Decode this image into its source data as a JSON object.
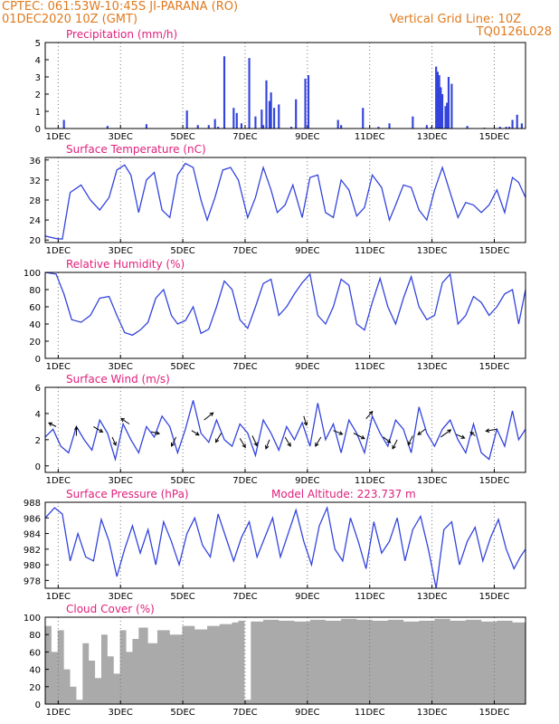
{
  "header": {
    "line1": "CPTEC:   061:53W-10:45S   JI-PARANA (RO)",
    "line2": "01DEC2020 10Z (GMT)",
    "right1": "Vertical Grid Line: 10Z",
    "right2": "TQ0126L028"
  },
  "colors": {
    "header": "#e07a1f",
    "title": "#e0207c",
    "line": "#3344dd",
    "cloud": "#aaaaaa"
  },
  "x_ticks": [
    "1DEC",
    "3DEC",
    "5DEC",
    "7DEC",
    "9DEC",
    "11DEC",
    "13DEC",
    "15DEC"
  ],
  "chart_data": [
    {
      "type": "bar",
      "title": "Precipitation (mm/h)",
      "xlabel": "",
      "ylabel": "",
      "ylim": [
        0,
        5
      ],
      "yticks": [
        0,
        1,
        2,
        3,
        4,
        5
      ],
      "xlim": [
        0,
        15.42
      ],
      "x": [
        0.6,
        2.0,
        3.25,
        4.55,
        4.9,
        5.25,
        5.45,
        5.55,
        5.75,
        6.05,
        6.15,
        6.3,
        6.55,
        6.75,
        6.95,
        7.0,
        7.1,
        7.2,
        7.25,
        7.35,
        7.5,
        7.9,
        8.05,
        8.35,
        8.45,
        9.4,
        9.5,
        10.2,
        10.7,
        11.05,
        11.8,
        12.25,
        12.4,
        12.55,
        12.6,
        12.65,
        12.7,
        12.75,
        12.85,
        12.9,
        12.95,
        13.05,
        13.55,
        14.1,
        14.6,
        14.8,
        14.9,
        15.0,
        15.15,
        15.3
      ],
      "values": [
        0.5,
        0.15,
        0.25,
        1.05,
        0.2,
        0.2,
        0.55,
        0.1,
        4.2,
        1.2,
        0.9,
        0.3,
        4.1,
        0.7,
        1.1,
        0.2,
        2.8,
        1.6,
        2.1,
        1.2,
        1.4,
        0.1,
        1.7,
        2.9,
        3.1,
        0.5,
        0.2,
        1.2,
        0.1,
        0.3,
        0.7,
        0.2,
        0.1,
        3.6,
        3.3,
        3.1,
        2.4,
        2.0,
        1.3,
        1.5,
        3.0,
        2.6,
        0.15,
        0.05,
        0.1,
        0.1,
        0.1,
        0.5,
        0.8,
        0.3
      ]
    },
    {
      "type": "line",
      "title": "Surface Temperature (nC)",
      "xlabel": "",
      "ylabel": "",
      "ylim": [
        19.5,
        36.5
      ],
      "yticks": [
        20,
        24,
        28,
        32,
        36
      ],
      "xlim": [
        0,
        15.42
      ],
      "x": [
        0,
        0.35,
        0.55,
        0.8,
        1.15,
        1.45,
        1.75,
        2.05,
        2.3,
        2.55,
        2.75,
        3.0,
        3.25,
        3.5,
        3.75,
        4.0,
        4.25,
        4.5,
        4.75,
        5.0,
        5.2,
        5.45,
        5.7,
        5.95,
        6.2,
        6.5,
        6.75,
        7.0,
        7.25,
        7.45,
        7.7,
        7.95,
        8.25,
        8.5,
        8.75,
        9.0,
        9.25,
        9.5,
        9.75,
        10.0,
        10.25,
        10.5,
        10.8,
        11.05,
        11.25,
        11.5,
        11.75,
        12.0,
        12.25,
        12.5,
        12.75,
        13.0,
        13.25,
        13.5,
        13.75,
        14.0,
        14.25,
        14.5,
        14.75,
        15.0,
        15.2,
        15.42
      ],
      "values": [
        20.8,
        20.3,
        20.2,
        29.5,
        31.0,
        28.0,
        26.0,
        28.5,
        34.0,
        35.0,
        33.0,
        25.5,
        32.0,
        33.5,
        26.0,
        24.5,
        33.0,
        35.3,
        34.5,
        28.0,
        24.0,
        28.5,
        34.0,
        34.5,
        32.0,
        24.5,
        28.5,
        34.5,
        30.0,
        25.5,
        27.0,
        31.0,
        24.5,
        32.5,
        33.0,
        25.5,
        24.5,
        32.0,
        30.0,
        24.8,
        26.5,
        33.0,
        30.5,
        24.0,
        27.0,
        31.0,
        30.5,
        26.0,
        24.0,
        30.0,
        34.5,
        29.5,
        24.5,
        27.5,
        27.0,
        25.5,
        27.0,
        30.0,
        25.5,
        32.5,
        31.5,
        28.5
      ]
    },
    {
      "type": "line",
      "title": "Relative Humidity (%)",
      "xlabel": "",
      "ylabel": "",
      "ylim": [
        0,
        100
      ],
      "yticks": [
        0,
        20,
        40,
        60,
        80,
        100
      ],
      "xlim": [
        0,
        15.42
      ],
      "x": [
        0,
        0.35,
        0.6,
        0.85,
        1.15,
        1.45,
        1.75,
        2.05,
        2.3,
        2.55,
        2.8,
        3.05,
        3.3,
        3.55,
        3.8,
        4.05,
        4.25,
        4.5,
        4.75,
        5.0,
        5.25,
        5.5,
        5.75,
        6.0,
        6.25,
        6.5,
        6.75,
        7.0,
        7.25,
        7.5,
        7.75,
        8.0,
        8.25,
        8.5,
        8.75,
        9.0,
        9.25,
        9.5,
        9.75,
        10.0,
        10.25,
        10.5,
        10.75,
        11.0,
        11.25,
        11.5,
        11.75,
        12.0,
        12.25,
        12.5,
        12.75,
        13.0,
        13.25,
        13.5,
        13.75,
        14.0,
        14.25,
        14.5,
        14.75,
        15.0,
        15.2,
        15.42
      ],
      "values": [
        100,
        98,
        75,
        45,
        42,
        50,
        70,
        72,
        50,
        30,
        27,
        33,
        42,
        70,
        80,
        50,
        40,
        44,
        60,
        29,
        34,
        60,
        90,
        80,
        45,
        35,
        60,
        87,
        92,
        50,
        60,
        75,
        88,
        98,
        50,
        40,
        60,
        92,
        85,
        40,
        33,
        65,
        93,
        60,
        40,
        70,
        95,
        60,
        45,
        50,
        88,
        98,
        40,
        50,
        72,
        65,
        50,
        60,
        75,
        80,
        40,
        80
      ]
    },
    {
      "type": "line",
      "title": "Surface Wind (m/s)",
      "xlabel": "",
      "ylabel": "",
      "ylim": [
        -0.5,
        6
      ],
      "yticks": [
        0,
        2,
        4,
        6
      ],
      "xlim": [
        0,
        15.42
      ],
      "x": [
        0,
        0.25,
        0.5,
        0.75,
        1.0,
        1.25,
        1.5,
        1.75,
        2.0,
        2.25,
        2.5,
        2.75,
        3.0,
        3.25,
        3.5,
        3.75,
        4.0,
        4.25,
        4.5,
        4.75,
        5.0,
        5.25,
        5.5,
        5.75,
        6.0,
        6.25,
        6.5,
        6.75,
        7.0,
        7.25,
        7.5,
        7.75,
        8.0,
        8.25,
        8.5,
        8.75,
        9.0,
        9.25,
        9.5,
        9.75,
        10.0,
        10.25,
        10.5,
        10.75,
        11.0,
        11.25,
        11.5,
        11.75,
        12.0,
        12.25,
        12.5,
        12.75,
        13.0,
        13.25,
        13.5,
        13.75,
        14.0,
        14.25,
        14.5,
        14.75,
        15.0,
        15.2,
        15.42
      ],
      "values": [
        2.2,
        2.8,
        1.5,
        1.0,
        3.0,
        2.0,
        1.2,
        3.5,
        2.5,
        0.5,
        3.2,
        2.0,
        1.0,
        3.0,
        2.2,
        3.8,
        3.0,
        1.0,
        2.8,
        5.0,
        2.5,
        1.8,
        3.5,
        2.0,
        1.5,
        3.2,
        2.5,
        0.8,
        3.5,
        2.5,
        1.2,
        3.0,
        2.0,
        3.3,
        1.5,
        4.8,
        2.0,
        3.2,
        1.0,
        3.5,
        2.5,
        1.0,
        3.8,
        2.5,
        1.5,
        3.5,
        2.8,
        1.0,
        4.5,
        2.5,
        1.5,
        2.8,
        3.5,
        2.0,
        1.0,
        3.2,
        1.0,
        0.5,
        2.8,
        1.5,
        4.2,
        2.0,
        2.8
      ]
    },
    {
      "type": "line",
      "title": "Surface Pressure (hPa)",
      "annotation": "Model Altitude: 223.737 m",
      "xlabel": "",
      "ylabel": "",
      "ylim": [
        977,
        988
      ],
      "yticks": [
        978,
        980,
        982,
        984,
        986,
        988
      ],
      "xlim": [
        0,
        15.42
      ],
      "x": [
        0,
        0.3,
        0.55,
        0.8,
        1.05,
        1.3,
        1.55,
        1.8,
        2.05,
        2.3,
        2.55,
        2.8,
        3.05,
        3.3,
        3.55,
        3.8,
        4.05,
        4.3,
        4.55,
        4.8,
        5.05,
        5.3,
        5.55,
        5.8,
        6.05,
        6.3,
        6.55,
        6.8,
        7.05,
        7.3,
        7.55,
        7.8,
        8.05,
        8.3,
        8.55,
        8.8,
        9.05,
        9.3,
        9.55,
        9.8,
        10.05,
        10.3,
        10.55,
        10.8,
        11.05,
        11.3,
        11.55,
        11.8,
        12.05,
        12.3,
        12.55,
        12.8,
        13.05,
        13.3,
        13.55,
        13.8,
        14.05,
        14.3,
        14.55,
        14.8,
        15.05,
        15.25,
        15.42
      ],
      "values": [
        986,
        987.3,
        986.5,
        980.5,
        984.0,
        981.0,
        980.5,
        985.8,
        983.0,
        978.5,
        982.0,
        985.0,
        981.5,
        984.5,
        980.0,
        985.5,
        983.0,
        980.0,
        984.0,
        986.0,
        982.5,
        981.0,
        986.5,
        983.5,
        980.5,
        983.5,
        985.5,
        981.0,
        983.5,
        986.0,
        981.0,
        984.0,
        987.0,
        983.0,
        980.0,
        985.0,
        987.3,
        982.0,
        980.5,
        986.0,
        983.0,
        979.5,
        985.5,
        981.5,
        983.0,
        986.0,
        980.5,
        984.5,
        986.2,
        982.0,
        977.0,
        984.5,
        985.5,
        980.0,
        983.0,
        984.8,
        980.5,
        983.5,
        985.8,
        982.0,
        979.5,
        981.0,
        982.0
      ]
    },
    {
      "type": "area",
      "title": "Cloud Cover (%)",
      "xlabel": "",
      "ylabel": "",
      "ylim": [
        0,
        100
      ],
      "yticks": [
        0,
        20,
        40,
        60,
        80,
        100
      ],
      "xlim": [
        0,
        15.42
      ],
      "x": [
        0,
        0.2,
        0.4,
        0.6,
        0.8,
        1.0,
        1.2,
        1.4,
        1.6,
        1.8,
        2.0,
        2.2,
        2.4,
        2.6,
        2.8,
        3.0,
        3.3,
        3.6,
        4.0,
        4.4,
        4.8,
        5.2,
        5.6,
        6.0,
        6.2,
        6.4,
        6.6,
        7.0,
        7.5,
        8.0,
        8.5,
        9.0,
        9.5,
        10.0,
        10.5,
        11.0,
        11.5,
        12.0,
        12.5,
        13.0,
        13.5,
        14.0,
        14.5,
        15.0,
        15.42
      ],
      "values": [
        90,
        60,
        85,
        40,
        20,
        5,
        70,
        50,
        30,
        80,
        55,
        35,
        85,
        60,
        75,
        88,
        70,
        85,
        80,
        90,
        86,
        90,
        92,
        94,
        96,
        5,
        95,
        97,
        96,
        95,
        97,
        96,
        98,
        97,
        96,
        97,
        95,
        96,
        98,
        96,
        97,
        95,
        96,
        94,
        97
      ]
    }
  ],
  "wind_arrows": [
    {
      "x": 0.35,
      "y": 3.0,
      "dx": -8,
      "dy": -4
    },
    {
      "x": 1.0,
      "y": 2.3,
      "dx": 0,
      "dy": -10
    },
    {
      "x": 1.55,
      "y": 3.0,
      "dx": 10,
      "dy": 6
    },
    {
      "x": 2.15,
      "y": 2.2,
      "dx": 4,
      "dy": 9
    },
    {
      "x": 2.7,
      "y": 3.2,
      "dx": -9,
      "dy": -6
    },
    {
      "x": 3.4,
      "y": 2.6,
      "dx": 9,
      "dy": 2
    },
    {
      "x": 4.2,
      "y": 2.2,
      "dx": -5,
      "dy": 10
    },
    {
      "x": 4.7,
      "y": 2.7,
      "dx": 8,
      "dy": 5
    },
    {
      "x": 5.1,
      "y": 3.5,
      "dx": 10,
      "dy": -8
    },
    {
      "x": 5.65,
      "y": 2.5,
      "dx": -6,
      "dy": 10
    },
    {
      "x": 6.25,
      "y": 2.1,
      "dx": 6,
      "dy": 10
    },
    {
      "x": 6.65,
      "y": 2.3,
      "dx": 5,
      "dy": 11
    },
    {
      "x": 7.2,
      "y": 2.0,
      "dx": -4,
      "dy": 10
    },
    {
      "x": 7.7,
      "y": 2.2,
      "dx": 6,
      "dy": 10
    },
    {
      "x": 8.3,
      "y": 3.8,
      "dx": 3,
      "dy": 10
    },
    {
      "x": 8.85,
      "y": 2.2,
      "dx": -6,
      "dy": 10
    },
    {
      "x": 9.25,
      "y": 2.7,
      "dx": 10,
      "dy": 4
    },
    {
      "x": 9.9,
      "y": 2.5,
      "dx": 12,
      "dy": 6
    },
    {
      "x": 10.3,
      "y": 3.6,
      "dx": 7,
      "dy": -8
    },
    {
      "x": 10.85,
      "y": 2.2,
      "dx": 8,
      "dy": 6
    },
    {
      "x": 11.3,
      "y": 2.0,
      "dx": -5,
      "dy": 10
    },
    {
      "x": 11.8,
      "y": 2.3,
      "dx": -5,
      "dy": 10
    },
    {
      "x": 12.2,
      "y": 2.8,
      "dx": -8,
      "dy": 6
    },
    {
      "x": 12.7,
      "y": 2.2,
      "dx": 11,
      "dy": -8
    },
    {
      "x": 13.2,
      "y": 2.4,
      "dx": 9,
      "dy": 4
    },
    {
      "x": 13.8,
      "y": 2.3,
      "dx": -5,
      "dy": -4
    },
    {
      "x": 14.5,
      "y": 2.8,
      "dx": -12,
      "dy": 2
    }
  ]
}
